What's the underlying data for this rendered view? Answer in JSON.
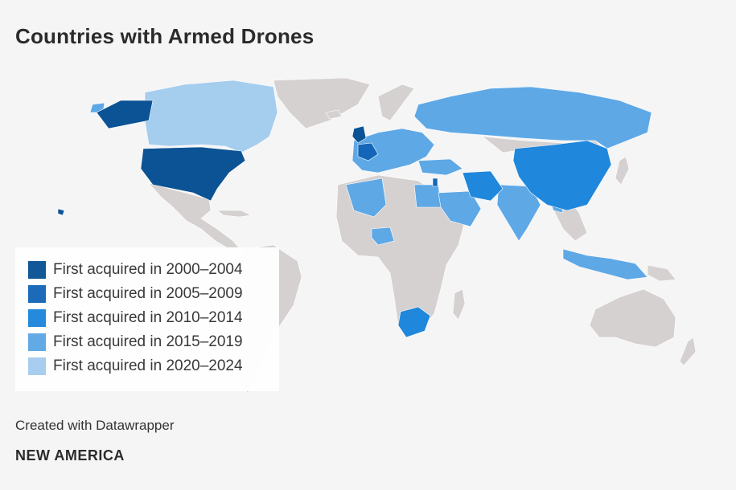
{
  "title": "Countries with Armed Drones",
  "colors": {
    "period_2000_2004": "#0b5394",
    "period_2005_2009": "#1467b8",
    "period_2010_2014": "#1f87dc",
    "period_2015_2019": "#5ea8e6",
    "period_2020_2024": "#a5cdee",
    "no_data": "#d6d1d1",
    "background": "#f5f5f5"
  },
  "legend": {
    "items": [
      {
        "label": "First acquired in 2000–2004",
        "color": "#0b5394"
      },
      {
        "label": "First acquired in 2005–2009",
        "color": "#1467b8"
      },
      {
        "label": "First acquired in 2010–2014",
        "color": "#1f87dc"
      },
      {
        "label": "First acquired in 2015–2019",
        "color": "#5ea8e6"
      },
      {
        "label": "First acquired in 2020–2024",
        "color": "#a5cdee"
      }
    ]
  },
  "credit": "Created with Datawrapper",
  "brand": "NEW AMERICA"
}
